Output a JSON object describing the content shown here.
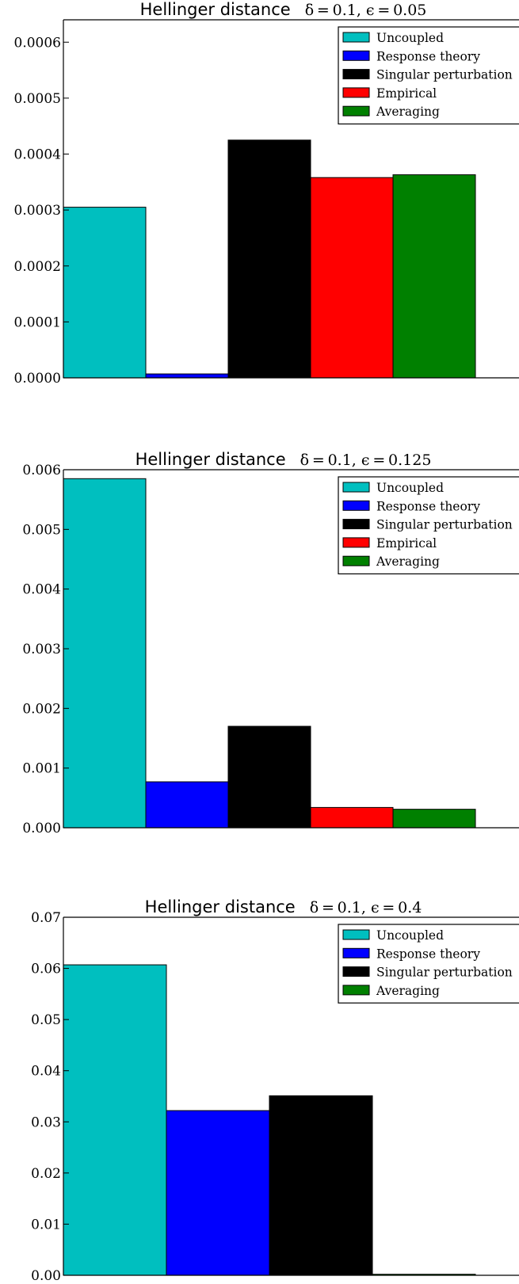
{
  "chart_data": [
    {
      "type": "bar",
      "title": "Hellinger distance",
      "title_params": "δ = 0.1,  ϵ = 0.05",
      "categories": [
        "Uncoupled",
        "Response theory",
        "Singular perturbation",
        "Empirical",
        "Averaging"
      ],
      "values": [
        0.000305,
        7e-06,
        0.000425,
        0.000358,
        0.000363
      ],
      "colors": [
        "#00bfbf",
        "#0000ff",
        "#000000",
        "#ff0000",
        "#008000"
      ],
      "ylim": [
        0,
        0.00064
      ],
      "yticks": [
        0.0,
        0.0001,
        0.0002,
        0.0003,
        0.0004,
        0.0005,
        0.0006
      ],
      "ytick_labels": [
        "0.0000",
        "0.0001",
        "0.0002",
        "0.0003",
        "0.0004",
        "0.0005",
        "0.0006"
      ],
      "legend": [
        "Uncoupled",
        "Response theory",
        "Singular perturbation",
        "Empirical",
        "Averaging"
      ],
      "legend_position": "top-right",
      "grid": false
    },
    {
      "type": "bar",
      "title": "Hellinger distance",
      "title_params": "δ = 0.1,  ϵ = 0.125",
      "categories": [
        "Uncoupled",
        "Response theory",
        "Singular perturbation",
        "Empirical",
        "Averaging"
      ],
      "values": [
        0.00585,
        0.00077,
        0.0017,
        0.00034,
        0.00031
      ],
      "colors": [
        "#00bfbf",
        "#0000ff",
        "#000000",
        "#ff0000",
        "#008000"
      ],
      "ylim": [
        0,
        0.006
      ],
      "yticks": [
        0.0,
        0.001,
        0.002,
        0.003,
        0.004,
        0.005,
        0.006
      ],
      "ytick_labels": [
        "0.000",
        "0.001",
        "0.002",
        "0.003",
        "0.004",
        "0.005",
        "0.006"
      ],
      "legend": [
        "Uncoupled",
        "Response theory",
        "Singular perturbation",
        "Empirical",
        "Averaging"
      ],
      "legend_position": "top-right",
      "grid": false
    },
    {
      "type": "bar",
      "title": "Hellinger distance",
      "title_params": "δ = 0.1,  ϵ = 0.4",
      "categories": [
        "Uncoupled",
        "Response theory",
        "Singular perturbation",
        "Averaging"
      ],
      "values": [
        0.0607,
        0.0322,
        0.0351,
        0.0002
      ],
      "colors": [
        "#00bfbf",
        "#0000ff",
        "#000000",
        "#008000"
      ],
      "ylim": [
        0,
        0.07
      ],
      "yticks": [
        0.0,
        0.01,
        0.02,
        0.03,
        0.04,
        0.05,
        0.06,
        0.07
      ],
      "ytick_labels": [
        "0.00",
        "0.01",
        "0.02",
        "0.03",
        "0.04",
        "0.05",
        "0.06",
        "0.07"
      ],
      "legend": [
        "Uncoupled",
        "Response theory",
        "Singular perturbation",
        "Averaging"
      ],
      "legend_position": "top-right",
      "grid": false
    }
  ]
}
